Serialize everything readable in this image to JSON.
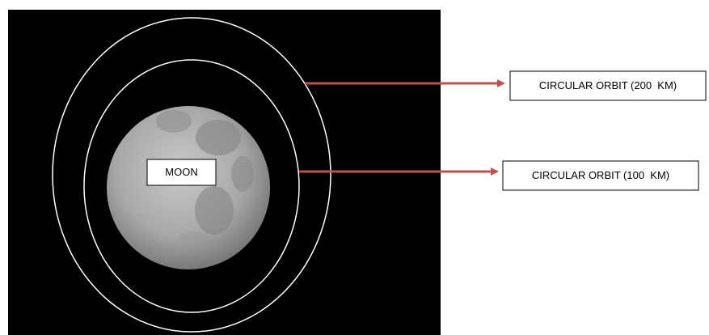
{
  "moon": {
    "label": "MOON"
  },
  "orbits": [
    {
      "label": "CIRCULAR ORBIT (200  KM)"
    },
    {
      "label": "CIRCULAR ORBIT (100  KM)"
    }
  ]
}
